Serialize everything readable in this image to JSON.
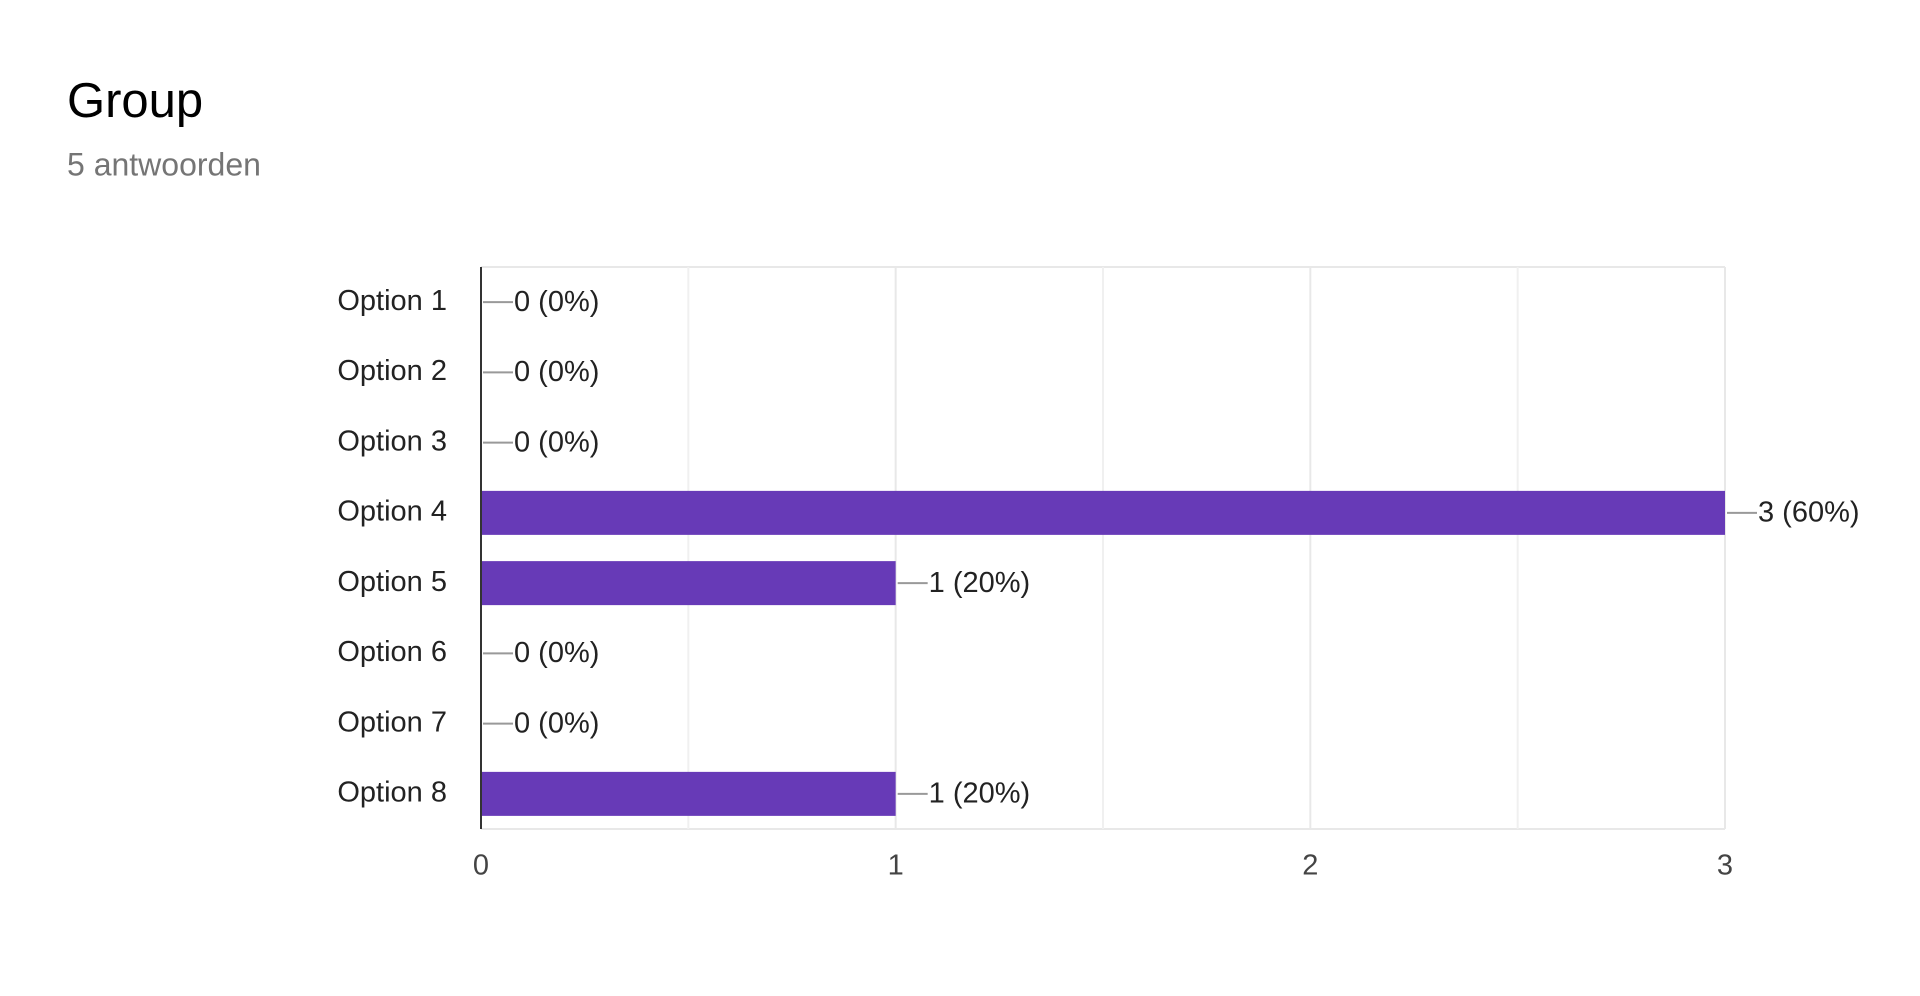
{
  "chart_data": {
    "type": "bar",
    "title": "Group",
    "subtitle": "5 antwoorden",
    "categories": [
      "Option 1",
      "Option 2",
      "Option 3",
      "Option 4",
      "Option 5",
      "Option 6",
      "Option 7",
      "Option 8"
    ],
    "values": [
      0,
      0,
      0,
      3,
      1,
      0,
      0,
      1
    ],
    "value_labels": [
      "0 (0%)",
      "0 (0%)",
      "0 (0%)",
      "3 (60%)",
      "1 (20%)",
      "0 (0%)",
      "0 (0%)",
      "1 (20%)"
    ],
    "color": "#673ab7",
    "xlim": [
      0,
      3
    ],
    "xticks": [
      0,
      1,
      2,
      3
    ],
    "grid": true
  }
}
